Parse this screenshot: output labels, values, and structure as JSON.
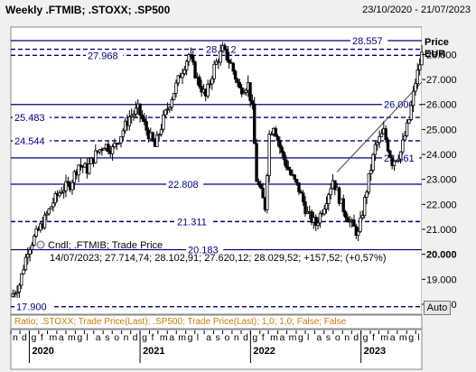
{
  "header": {
    "title": "Weekly .FTMIB; .STOXX; .SP500",
    "date_range": "23/10/2020 - 21/07/2023"
  },
  "axis": {
    "price_label": "Price",
    "currency_label": "EUR",
    "auto_button": "Auto"
  },
  "legend": {
    "line1": "Cndl; .FTMIB; Trade Price",
    "line2": "14/07/2023; 27.714,74; 28.102,91; 27.620,12; 28.029,52; +157,52; (+0,57%)",
    "ratio_line": "Ratio; .STOXX; Trade Price(Last); .SP500; Trade Price(Last); 1,0; 1,0; False; False"
  },
  "colors": {
    "background": "#ffffff",
    "horizontal_line": "#000080",
    "label_text": "#000080",
    "ratio_text": "#cc7a00",
    "candle": "#000000"
  },
  "chart_data": {
    "type": "candlestick",
    "x_start": "2019-11-01",
    "x_end": "2023-07-21",
    "ylim": [
      17.6,
      29.1
    ],
    "y_ticks": [
      "28.000",
      "27.000",
      "26.000",
      "25.000",
      "24.000",
      "23.000",
      "22.000",
      "21.000",
      "20.000",
      "19.000",
      "18.000"
    ],
    "highlight_tick": "20.000",
    "month_letters": [
      "n",
      "d",
      "g",
      "f",
      "m",
      "a",
      "m",
      "g",
      "l",
      "a",
      "s",
      "o",
      "n",
      "d",
      "g",
      "f",
      "m",
      "a",
      "m",
      "g",
      "l",
      "a",
      "s",
      "o",
      "n",
      "d",
      "g",
      "f",
      "m",
      "a",
      "m",
      "g",
      "l",
      "a",
      "s",
      "o",
      "n",
      "d",
      "g",
      "f",
      "m",
      "a",
      "m",
      "g",
      "l"
    ],
    "years": [
      {
        "label": "2020",
        "month_index": 2
      },
      {
        "label": "2021",
        "month_index": 14
      },
      {
        "label": "2022",
        "month_index": 26
      },
      {
        "label": "2023",
        "month_index": 38
      }
    ],
    "levels": [
      {
        "value": 28.557,
        "label": "28.557",
        "style": "solid"
      },
      {
        "value": 28.212,
        "label": "28.212",
        "style": "dashed"
      },
      {
        "value": 27.968,
        "label": "27.968",
        "style": "dashed"
      },
      {
        "value": 26.0,
        "label": "26.000",
        "style": "solid"
      },
      {
        "value": 25.483,
        "label": "25.483",
        "style": "dashed"
      },
      {
        "value": 24.544,
        "label": "24.544",
        "style": "dashed"
      },
      {
        "value": 23.861,
        "label": "23.861",
        "style": "solid"
      },
      {
        "value": 22.808,
        "label": "22.808",
        "style": "solid"
      },
      {
        "value": 21.311,
        "label": "21.311",
        "style": "dashed"
      },
      {
        "value": 20.183,
        "label": "20.183",
        "style": "solid"
      },
      {
        "value": 17.9,
        "label": "17.900",
        "style": "dashed"
      }
    ],
    "trendline": {
      "start": [
        "2022-10-14",
        23.3
      ],
      "end": [
        "2023-07-21",
        26.9
      ]
    },
    "series_close": [
      [
        "2019-11-01",
        18.3
      ],
      [
        "2019-11-29",
        18.8
      ],
      [
        "2019-12-27",
        20.2
      ],
      [
        "2020-01-24",
        20.8
      ],
      [
        "2020-02-21",
        21.4
      ],
      [
        "2020-03-20",
        22.1
      ],
      [
        "2020-04-17",
        22.6
      ],
      [
        "2020-05-15",
        22.8
      ],
      [
        "2020-06-12",
        23.6
      ],
      [
        "2020-07-10",
        23.4
      ],
      [
        "2020-08-07",
        24.0
      ],
      [
        "2020-09-04",
        24.4
      ],
      [
        "2020-10-02",
        24.2
      ],
      [
        "2020-10-30",
        24.8
      ],
      [
        "2020-11-27",
        25.5
      ],
      [
        "2020-12-25",
        25.8
      ],
      [
        "2021-01-22",
        25.0
      ],
      [
        "2021-02-19",
        24.3
      ],
      [
        "2021-03-19",
        25.4
      ],
      [
        "2021-04-16",
        26.3
      ],
      [
        "2021-05-14",
        27.2
      ],
      [
        "2021-06-11",
        28.0
      ],
      [
        "2021-07-09",
        27.0
      ],
      [
        "2021-08-06",
        26.3
      ],
      [
        "2021-09-03",
        27.5
      ],
      [
        "2021-10-01",
        28.2
      ],
      [
        "2021-10-29",
        27.6
      ],
      [
        "2021-11-26",
        26.6
      ],
      [
        "2021-12-24",
        26.8
      ],
      [
        "2022-01-07",
        25.8
      ],
      [
        "2022-01-21",
        23.0
      ],
      [
        "2022-02-18",
        21.9
      ],
      [
        "2022-03-04",
        24.8
      ],
      [
        "2022-03-18",
        25.2
      ],
      [
        "2022-04-15",
        24.0
      ],
      [
        "2022-05-13",
        23.2
      ],
      [
        "2022-06-10",
        22.6
      ],
      [
        "2022-07-08",
        21.6
      ],
      [
        "2022-08-05",
        21.2
      ],
      [
        "2022-09-02",
        22.0
      ],
      [
        "2022-09-30",
        23.0
      ],
      [
        "2022-10-28",
        22.0
      ],
      [
        "2022-11-25",
        21.3
      ],
      [
        "2022-12-23",
        20.8
      ],
      [
        "2023-01-20",
        22.6
      ],
      [
        "2023-02-17",
        24.3
      ],
      [
        "2023-03-17",
        24.9
      ],
      [
        "2023-04-14",
        23.7
      ],
      [
        "2023-05-12",
        24.1
      ],
      [
        "2023-06-09",
        25.4
      ],
      [
        "2023-06-30",
        26.9
      ],
      [
        "2023-07-21",
        28.0
      ]
    ]
  }
}
